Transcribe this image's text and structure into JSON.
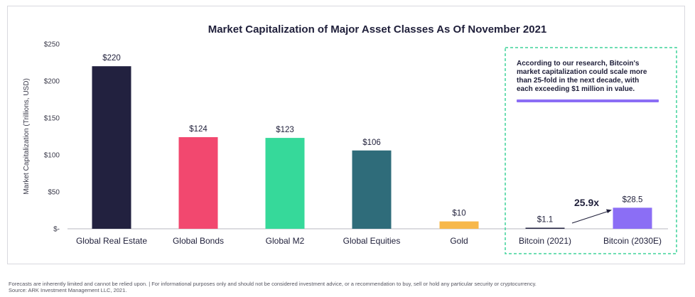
{
  "chart_data": {
    "type": "bar",
    "title": "Market Capitalization of Major Asset Classes As Of November 2021",
    "ylabel": "Market Capitalization (Trillions, USD)",
    "xlabel": "",
    "ylim": [
      0,
      250
    ],
    "y_ticks": [
      "$-",
      "$50",
      "$100",
      "$150",
      "$200",
      "$250"
    ],
    "y_tick_values": [
      0,
      50,
      100,
      150,
      200,
      250
    ],
    "categories": [
      "Global Real Estate",
      "Global Bonds",
      "Global M2",
      "Global Equities",
      "Gold",
      "Bitcoin (2021)",
      "Bitcoin (2030E)"
    ],
    "values": [
      220,
      124,
      123,
      106,
      10,
      1.1,
      28.5
    ],
    "value_labels": [
      "$220",
      "$124",
      "$123",
      "$106",
      "$10",
      "$1.1",
      "$28.5"
    ],
    "bar_colors": [
      "#22213f",
      "#f2486f",
      "#36d99a",
      "#2f6c7a",
      "#f7b84b",
      "#22213f",
      "#8b6ef5"
    ],
    "grid": false,
    "annotation": {
      "multiplier": "25.9x",
      "note_lines": [
        "According to our research, Bitcoin's",
        "market capitalization could scale more",
        "than 25-fold in the next decade, with",
        "each exceeding $1 million in value."
      ],
      "highlight_color": "#8b6ef5",
      "box_border_color": "#3fd49a"
    }
  },
  "footer": {
    "disclaimer": "Forecasts are inherently limited and cannot be relied upon. | For informational purposes only and should not be considered investment advice, or a recommendation to buy, sell or hold any particular security or cryptocurrency.",
    "source": "Source: ARK Investment Management LLC, 2021."
  }
}
